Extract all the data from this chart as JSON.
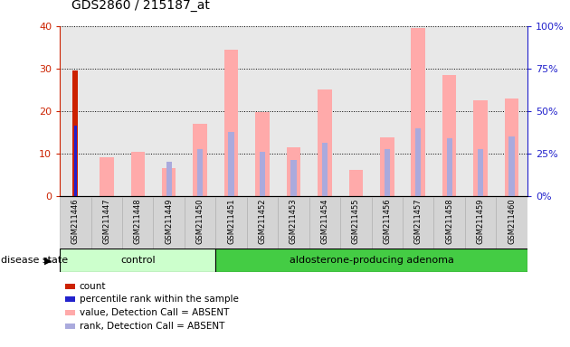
{
  "title": "GDS2860 / 215187_at",
  "samples": [
    "GSM211446",
    "GSM211447",
    "GSM211448",
    "GSM211449",
    "GSM211450",
    "GSM211451",
    "GSM211452",
    "GSM211453",
    "GSM211454",
    "GSM211455",
    "GSM211456",
    "GSM211457",
    "GSM211458",
    "GSM211459",
    "GSM211460"
  ],
  "value_absent": [
    0,
    9.2,
    10.5,
    6.5,
    17.0,
    34.5,
    19.8,
    11.5,
    25.0,
    6.2,
    13.8,
    39.5,
    28.5,
    22.5,
    23.0
  ],
  "rank_absent": [
    0,
    0,
    0,
    8.0,
    11.0,
    15.0,
    10.5,
    8.5,
    12.5,
    0,
    11.0,
    16.0,
    13.5,
    11.0,
    14.0
  ],
  "count": [
    29.5,
    0,
    0,
    0,
    0,
    0,
    0,
    0,
    0,
    0,
    0,
    0,
    0,
    0,
    0
  ],
  "pct_rank": [
    16.5,
    0,
    0,
    0,
    0,
    0,
    0,
    0,
    0,
    0,
    0,
    0,
    0,
    0,
    0
  ],
  "ylim": [
    0,
    40
  ],
  "yticks_left": [
    0,
    10,
    20,
    30,
    40
  ],
  "yticks_right": [
    0,
    25,
    50,
    75,
    100
  ],
  "control_count": 5,
  "total_samples": 15,
  "color_count": "#cc2200",
  "color_pct_rank": "#2222cc",
  "color_value_absent": "#ffaaaa",
  "color_rank_absent": "#aaaadd",
  "bg_color": "#ffffff",
  "plot_bg_color": "#e8e8e8",
  "left_tick_color": "#cc2200",
  "right_tick_color": "#2222cc",
  "control_color": "#ccffcc",
  "adenoma_color": "#44cc44"
}
